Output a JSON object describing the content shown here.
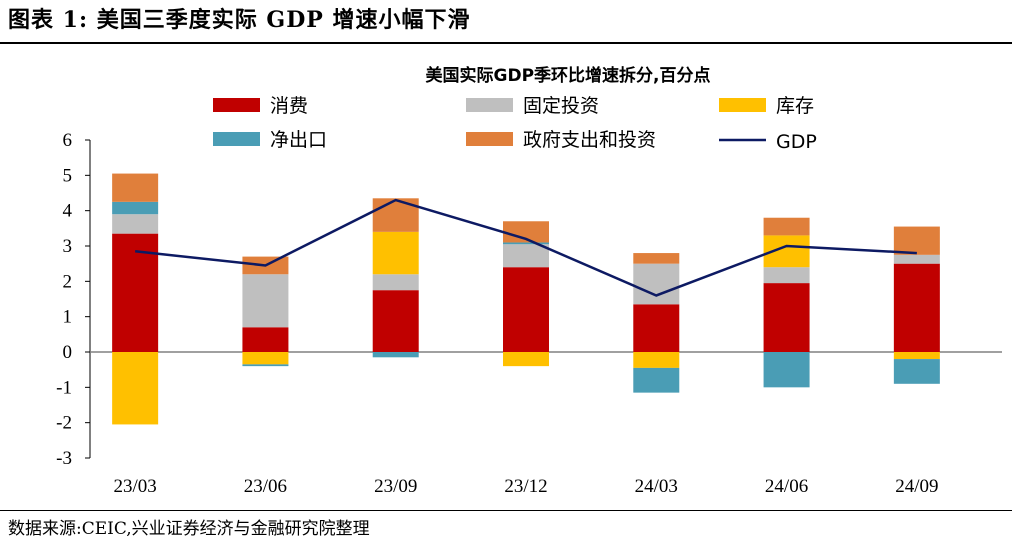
{
  "figure_label": "图表 1:",
  "figure_title": "美国三季度实际 GDP 增速小幅下滑",
  "source": "数据来源:CEIC,兴业证券经济与金融研究院整理",
  "colors": {
    "consumption": "#c00000",
    "fixed_investment": "#bfbfbf",
    "inventory": "#ffc000",
    "net_exports": "#4a9db5",
    "government": "#e07f3b",
    "gdp": "#0d1a63"
  },
  "chart_data": {
    "type": "bar",
    "stacked": true,
    "title": "美国实际GDP季环比增速拆分,百分点",
    "categories": [
      "23/03",
      "23/06",
      "23/09",
      "23/12",
      "24/03",
      "24/06",
      "24/09"
    ],
    "ylim": [
      -3,
      6
    ],
    "yticks": [
      "6",
      "5",
      "4",
      "3",
      "2",
      "1",
      "0",
      "-1",
      "-2",
      "-3"
    ],
    "series": [
      {
        "key": "consumption",
        "name": "消费",
        "values": [
          3.35,
          0.7,
          1.75,
          2.4,
          1.35,
          1.95,
          2.5
        ]
      },
      {
        "key": "fixed_investment",
        "name": "固定投资",
        "values": [
          0.55,
          1.5,
          0.45,
          0.65,
          1.15,
          0.45,
          0.25
        ]
      },
      {
        "key": "inventory",
        "name": "库存",
        "values": [
          -2.05,
          -0.35,
          1.2,
          -0.4,
          -0.45,
          0.9,
          -0.2
        ]
      },
      {
        "key": "net_exports",
        "name": "净出口",
        "values": [
          0.35,
          -0.05,
          -0.15,
          0.05,
          -0.7,
          -1.0,
          -0.7
        ]
      },
      {
        "key": "government",
        "name": "政府支出和投资",
        "values": [
          0.8,
          0.5,
          0.95,
          0.6,
          0.3,
          0.5,
          0.8
        ]
      }
    ],
    "line": {
      "key": "gdp",
      "name": "GDP",
      "values": [
        2.85,
        2.45,
        4.3,
        3.2,
        1.6,
        3.0,
        2.8
      ]
    }
  }
}
